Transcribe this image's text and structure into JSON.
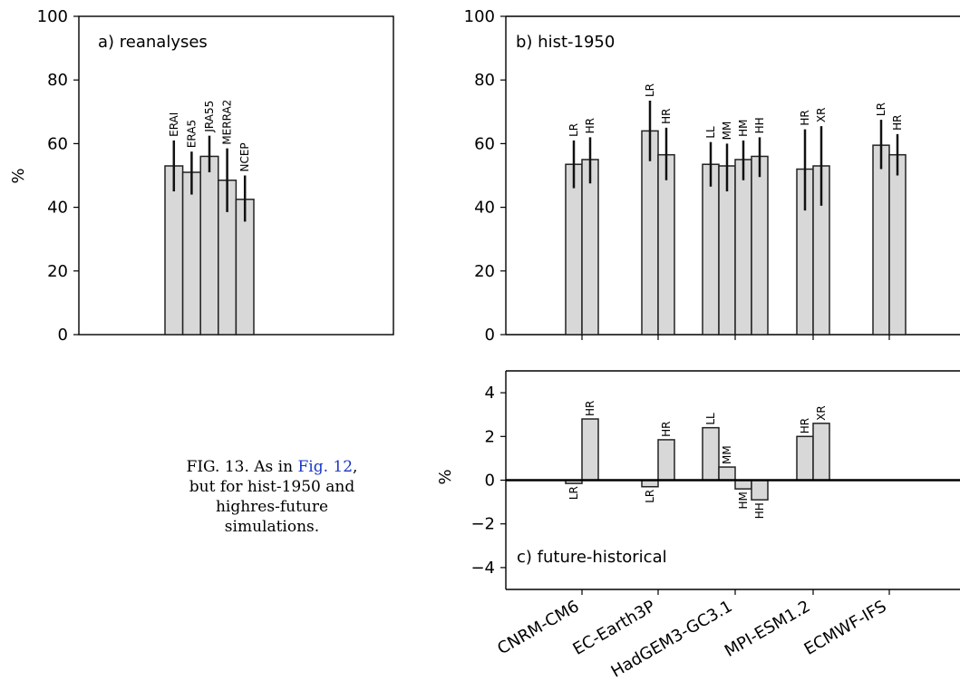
{
  "caption": {
    "fig_label": "FIG. 13.",
    "text_before": "As in",
    "link": "Fig. 12",
    "text_after": ", but for hist-1950 and highres-future simulations."
  },
  "colors": {
    "bar_fill": "#d8d8d8",
    "bar_edge": "#222222",
    "error_bar": "#111111",
    "axis": "#000000"
  },
  "chart_data": [
    {
      "panel": "a",
      "type": "bar",
      "title": "a) reanalyses",
      "ylabel": "%",
      "ylim": [
        0,
        100
      ],
      "yticks": [
        0,
        20,
        40,
        60,
        80,
        100
      ],
      "bars": [
        {
          "label": "ERAI",
          "value": 53,
          "err": [
            45,
            61
          ]
        },
        {
          "label": "ERA5",
          "value": 51,
          "err": [
            44,
            57.5
          ]
        },
        {
          "label": "JRA55",
          "value": 56,
          "err": [
            51,
            62.5
          ]
        },
        {
          "label": "MERRA2",
          "value": 48.5,
          "err": [
            38.5,
            58.5
          ]
        },
        {
          "label": "NCEP",
          "value": 42.5,
          "err": [
            35.5,
            50
          ]
        }
      ]
    },
    {
      "panel": "b",
      "type": "bar",
      "title": "b) hist-1950",
      "ylim": [
        0,
        100
      ],
      "yticks": [
        0,
        20,
        40,
        60,
        80,
        100
      ],
      "bars": [
        {
          "group": "CNRM-CM6",
          "label": "LR",
          "value": 53.5,
          "err": [
            46,
            61
          ]
        },
        {
          "group": "CNRM-CM6",
          "label": "HR",
          "value": 55,
          "err": [
            47.5,
            62
          ]
        },
        {
          "group": "EC-Earth3P",
          "label": "LR",
          "value": 64,
          "err": [
            54.5,
            73.5
          ]
        },
        {
          "group": "EC-Earth3P",
          "label": "HR",
          "value": 56.5,
          "err": [
            48.5,
            65
          ]
        },
        {
          "group": "HadGEM3-GC3.1",
          "label": "LL",
          "value": 53.5,
          "err": [
            46.5,
            60.5
          ]
        },
        {
          "group": "HadGEM3-GC3.1",
          "label": "MM",
          "value": 53,
          "err": [
            45,
            60
          ]
        },
        {
          "group": "HadGEM3-GC3.1",
          "label": "HM",
          "value": 55,
          "err": [
            48.5,
            61
          ]
        },
        {
          "group": "HadGEM3-GC3.1",
          "label": "HH",
          "value": 56,
          "err": [
            49.5,
            62
          ]
        },
        {
          "group": "MPI-ESM1.2",
          "label": "HR",
          "value": 52,
          "err": [
            39,
            64.5
          ]
        },
        {
          "group": "MPI-ESM1.2",
          "label": "XR",
          "value": 53,
          "err": [
            40.5,
            65.5
          ]
        },
        {
          "group": "ECMWF-IFS",
          "label": "LR",
          "value": 59.5,
          "err": [
            52,
            67.5
          ]
        },
        {
          "group": "ECMWF-IFS",
          "label": "HR",
          "value": 56.5,
          "err": [
            50,
            63
          ]
        }
      ]
    },
    {
      "panel": "c",
      "type": "bar",
      "title": "c) future-historical",
      "ylabel": "%",
      "ylim": [
        -5,
        5
      ],
      "yticks": [
        -4,
        -2,
        0,
        2,
        4
      ],
      "categories": [
        "CNRM-CM6",
        "EC-Earth3P",
        "HadGEM3-GC3.1",
        "MPI-ESM1.2",
        "ECMWF-IFS"
      ],
      "bars": [
        {
          "group": "CNRM-CM6",
          "label": "LR",
          "value": -0.15
        },
        {
          "group": "CNRM-CM6",
          "label": "HR",
          "value": 2.8
        },
        {
          "group": "EC-Earth3P",
          "label": "LR",
          "value": -0.3
        },
        {
          "group": "EC-Earth3P",
          "label": "HR",
          "value": 1.85
        },
        {
          "group": "HadGEM3-GC3.1",
          "label": "LL",
          "value": 2.4
        },
        {
          "group": "HadGEM3-GC3.1",
          "label": "MM",
          "value": 0.6
        },
        {
          "group": "HadGEM3-GC3.1",
          "label": "HM",
          "value": -0.4
        },
        {
          "group": "HadGEM3-GC3.1",
          "label": "HH",
          "value": -0.9
        },
        {
          "group": "MPI-ESM1.2",
          "label": "HR",
          "value": 2.0
        },
        {
          "group": "MPI-ESM1.2",
          "label": "XR",
          "value": 2.6
        }
      ]
    }
  ]
}
